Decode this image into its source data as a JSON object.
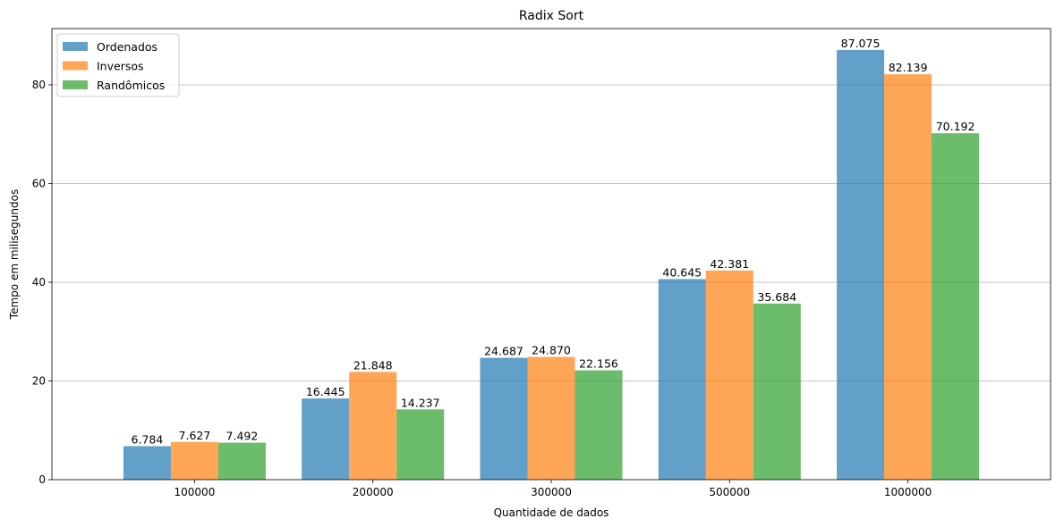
{
  "chart_data": {
    "type": "bar",
    "title": "Radix Sort",
    "xlabel": "Quantidade de dados",
    "ylabel": "Tempo em milisegundos",
    "categories": [
      "100000",
      "200000",
      "300000",
      "500000",
      "1000000"
    ],
    "series": [
      {
        "name": "Ordenados",
        "color": "#1f77b4",
        "values": [
          6.784,
          16.445,
          24.687,
          40.645,
          87.075
        ],
        "labels": [
          "6.784",
          "16.445",
          "24.687",
          "40.645",
          "87.075"
        ]
      },
      {
        "name": "Inversos",
        "color": "#ff7f0e",
        "values": [
          7.627,
          21.848,
          24.87,
          42.381,
          82.139
        ],
        "labels": [
          "7.627",
          "21.848",
          "24.870",
          "42.381",
          "82.139"
        ]
      },
      {
        "name": "Randômicos",
        "color": "#2ca02c",
        "values": [
          7.492,
          14.237,
          22.156,
          35.684,
          70.192
        ],
        "labels": [
          "7.492",
          "14.237",
          "22.156",
          "35.684",
          "70.192"
        ]
      }
    ],
    "ylim": [
      0,
      91.4
    ],
    "yticks": [
      0,
      20,
      40,
      60,
      80
    ],
    "ytick_labels": [
      "0",
      "20",
      "40",
      "60",
      "80"
    ],
    "grid": "y",
    "legend": "top-left",
    "bar_alpha": 0.7
  }
}
